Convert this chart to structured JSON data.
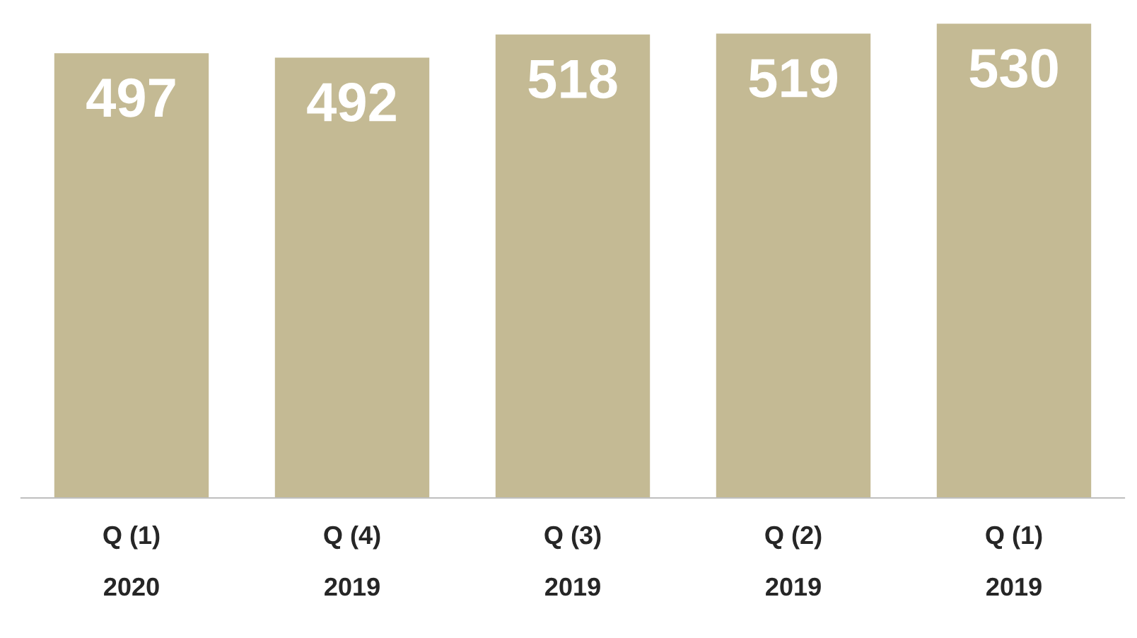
{
  "chart_data": {
    "type": "bar",
    "categories": [
      "Q (1)\n2020",
      "Q (4)\n2019",
      "Q (3)\n2019",
      "Q (2)\n2019",
      "Q (1)\n2019"
    ],
    "values": [
      497,
      492,
      518,
      519,
      530
    ],
    "color": "#c4ba94",
    "data_labels": true,
    "grid": false,
    "legend": false
  }
}
